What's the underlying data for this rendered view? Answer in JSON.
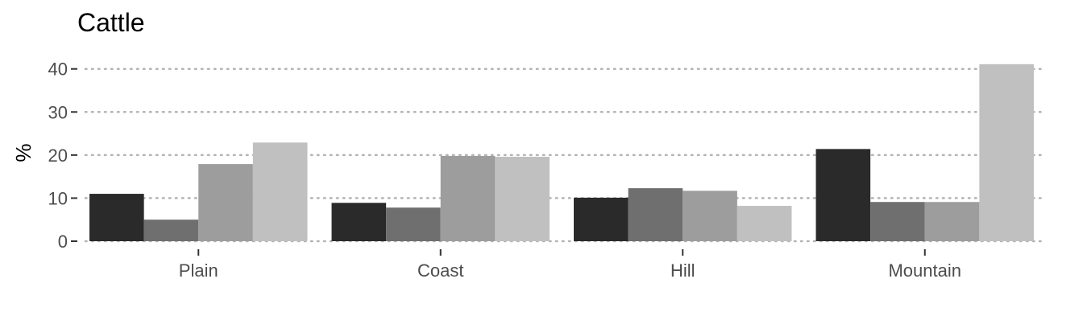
{
  "chart_data": {
    "type": "bar",
    "title": "Cattle",
    "xlabel": "",
    "ylabel": "%",
    "categories": [
      "Plain",
      "Coast",
      "Hill",
      "Mountain"
    ],
    "series": [
      {
        "values": [
          11.0,
          8.9,
          10.1,
          21.4
        ],
        "color": "#2a2a2a"
      },
      {
        "values": [
          5.0,
          7.8,
          12.3,
          9.1
        ],
        "color": "#6f6f6f"
      },
      {
        "values": [
          17.9,
          19.8,
          11.7,
          9.1
        ],
        "color": "#9d9d9d"
      },
      {
        "values": [
          22.9,
          19.6,
          8.2,
          41.1
        ],
        "color": "#c0c0c0"
      }
    ],
    "ylim": [
      0,
      42
    ],
    "yticks": [
      0,
      10,
      20,
      30,
      40
    ],
    "grid": true,
    "grid_style": "dotted",
    "legend": "none"
  }
}
